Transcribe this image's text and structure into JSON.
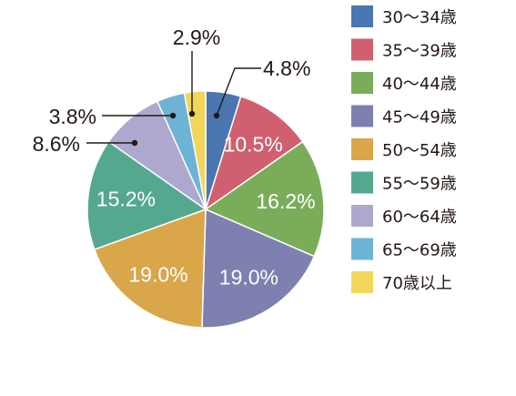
{
  "chart_data": {
    "type": "pie",
    "slices": [
      {
        "name": "30〜34歳",
        "value": 4.8,
        "label": "4.8%",
        "color": "#4a76b1"
      },
      {
        "name": "35〜39歳",
        "value": 10.5,
        "label": "10.5%",
        "color": "#d0606f"
      },
      {
        "name": "40〜44歳",
        "value": 16.2,
        "label": "16.2%",
        "color": "#7aad5a"
      },
      {
        "name": "45〜49歳",
        "value": 19.0,
        "label": "19.0%",
        "color": "#7e80b0"
      },
      {
        "name": "50〜54歳",
        "value": 19.0,
        "label": "19.0%",
        "color": "#d9a64a"
      },
      {
        "name": "55〜59歳",
        "value": 15.2,
        "label": "15.2%",
        "color": "#55a890"
      },
      {
        "name": "60〜64歳",
        "value": 8.6,
        "label": "8.6%",
        "color": "#aea7ce"
      },
      {
        "name": "65〜69歳",
        "value": 3.8,
        "label": "3.8%",
        "color": "#6db3d6"
      },
      {
        "name": "70歳以上",
        "value": 2.9,
        "label": "2.9%",
        "color": "#f1d65b"
      }
    ],
    "start": "12 o'clock",
    "direction": "clockwise",
    "legend_position": "right"
  }
}
